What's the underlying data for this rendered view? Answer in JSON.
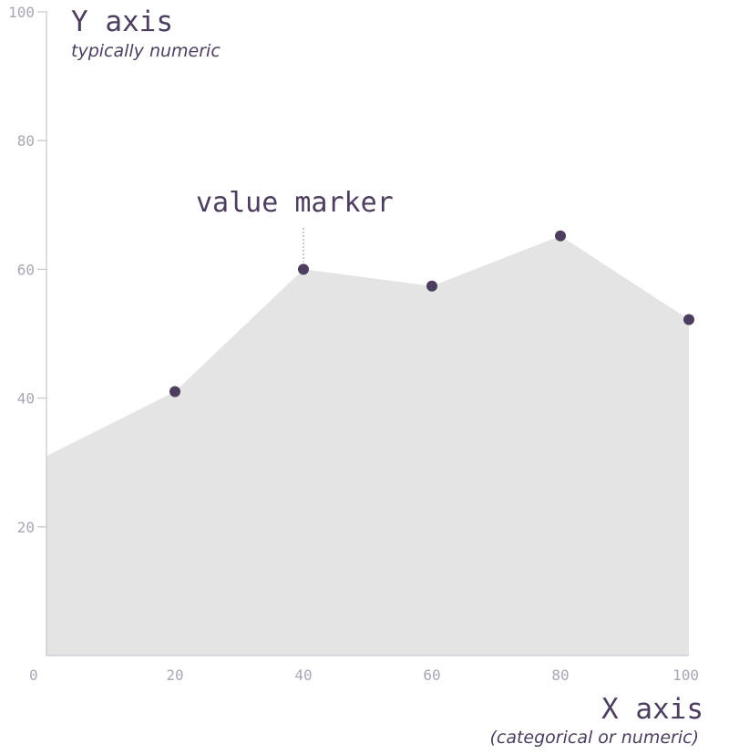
{
  "chart_data": {
    "type": "area",
    "x": [
      0,
      20,
      40,
      60,
      80,
      100
    ],
    "series": [
      {
        "values": [
          31,
          41,
          60,
          57.4,
          65.2,
          52.2
        ]
      }
    ],
    "markers_at_x": [
      20,
      40,
      60,
      80,
      100
    ],
    "xlim": [
      0,
      100
    ],
    "ylim": [
      0,
      100
    ],
    "x_ticks": [
      "0",
      "20",
      "40",
      "60",
      "80",
      "100"
    ],
    "y_ticks": [
      "20",
      "40",
      "60",
      "80",
      "100"
    ],
    "xlabel": "X axis",
    "xlabel_note": "(categorical or numeric)",
    "ylabel": "Y axis",
    "ylabel_note": "typically numeric",
    "annotation": {
      "text": "value marker",
      "x": 40,
      "y": 60
    },
    "grid": false,
    "legend": "none",
    "colors": {
      "area_fill": "#e4e4e4",
      "marker": "#4d3d5f",
      "axis": "#c8c6cf",
      "tick_text": "#a9a6b6",
      "label_text": "#4d3d5f"
    }
  }
}
